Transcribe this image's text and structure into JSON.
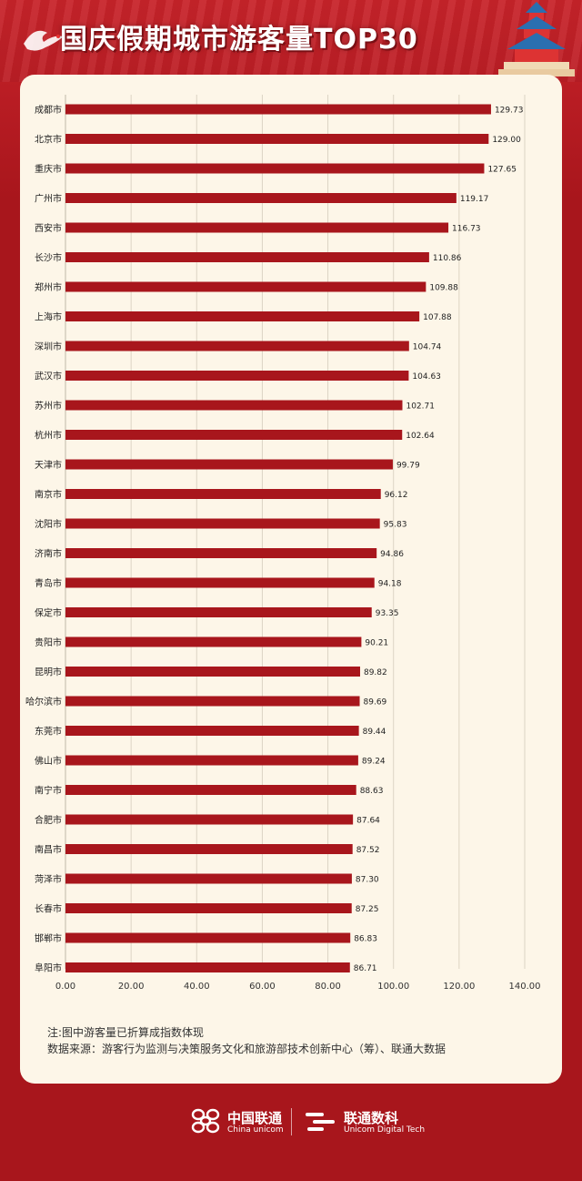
{
  "header": {
    "title": "国庆假期城市游客量TOP30"
  },
  "chart_data": {
    "type": "bar",
    "orientation": "horizontal",
    "categories": [
      "成都市",
      "北京市",
      "重庆市",
      "广州市",
      "西安市",
      "长沙市",
      "郑州市",
      "上海市",
      "深圳市",
      "武汉市",
      "苏州市",
      "杭州市",
      "天津市",
      "南京市",
      "沈阳市",
      "济南市",
      "青岛市",
      "保定市",
      "贵阳市",
      "昆明市",
      "哈尔滨市",
      "东莞市",
      "佛山市",
      "南宁市",
      "合肥市",
      "南昌市",
      "菏泽市",
      "长春市",
      "邯郸市",
      "阜阳市"
    ],
    "values": [
      129.73,
      129.0,
      127.65,
      119.17,
      116.73,
      110.86,
      109.88,
      107.88,
      104.74,
      104.63,
      102.71,
      102.64,
      99.79,
      96.12,
      95.83,
      94.86,
      94.18,
      93.35,
      90.21,
      89.82,
      89.69,
      89.44,
      89.24,
      88.63,
      87.64,
      87.52,
      87.3,
      87.25,
      86.83,
      86.71
    ],
    "value_labels": [
      "129.73",
      "129.00",
      "127.65",
      "119.17",
      "116.73",
      "110.86",
      "109.88",
      "107.88",
      "104.74",
      "104.63",
      "102.71",
      "102.64",
      "99.79",
      "96.12",
      "95.83",
      "94.86",
      "94.18",
      "93.35",
      "90.21",
      "89.82",
      "89.69",
      "89.44",
      "89.24",
      "88.63",
      "87.64",
      "87.52",
      "87.30",
      "87.25",
      "86.83",
      "86.71"
    ],
    "xticks": [
      "0.00",
      "20.00",
      "40.00",
      "60.00",
      "80.00",
      "100.00",
      "120.00",
      "140.00"
    ],
    "xlim": [
      0,
      140
    ],
    "grid": true,
    "bar_color": "#a8161c"
  },
  "notes": {
    "line1": "注:图中游客量已折算成指数体现",
    "line2": "数据来源：游客行为监测与决策服务文化和旅游部技术创新中心（筹）、联通大数据"
  },
  "footer": {
    "brand1": "中国联通",
    "brand1_sub": "China unicom",
    "brand2": "联通数科",
    "brand2_sub": "Unicom Digital Tech"
  },
  "colors": {
    "background": "#a8161c",
    "card": "#fdf6e8",
    "bar": "#a8161c"
  }
}
